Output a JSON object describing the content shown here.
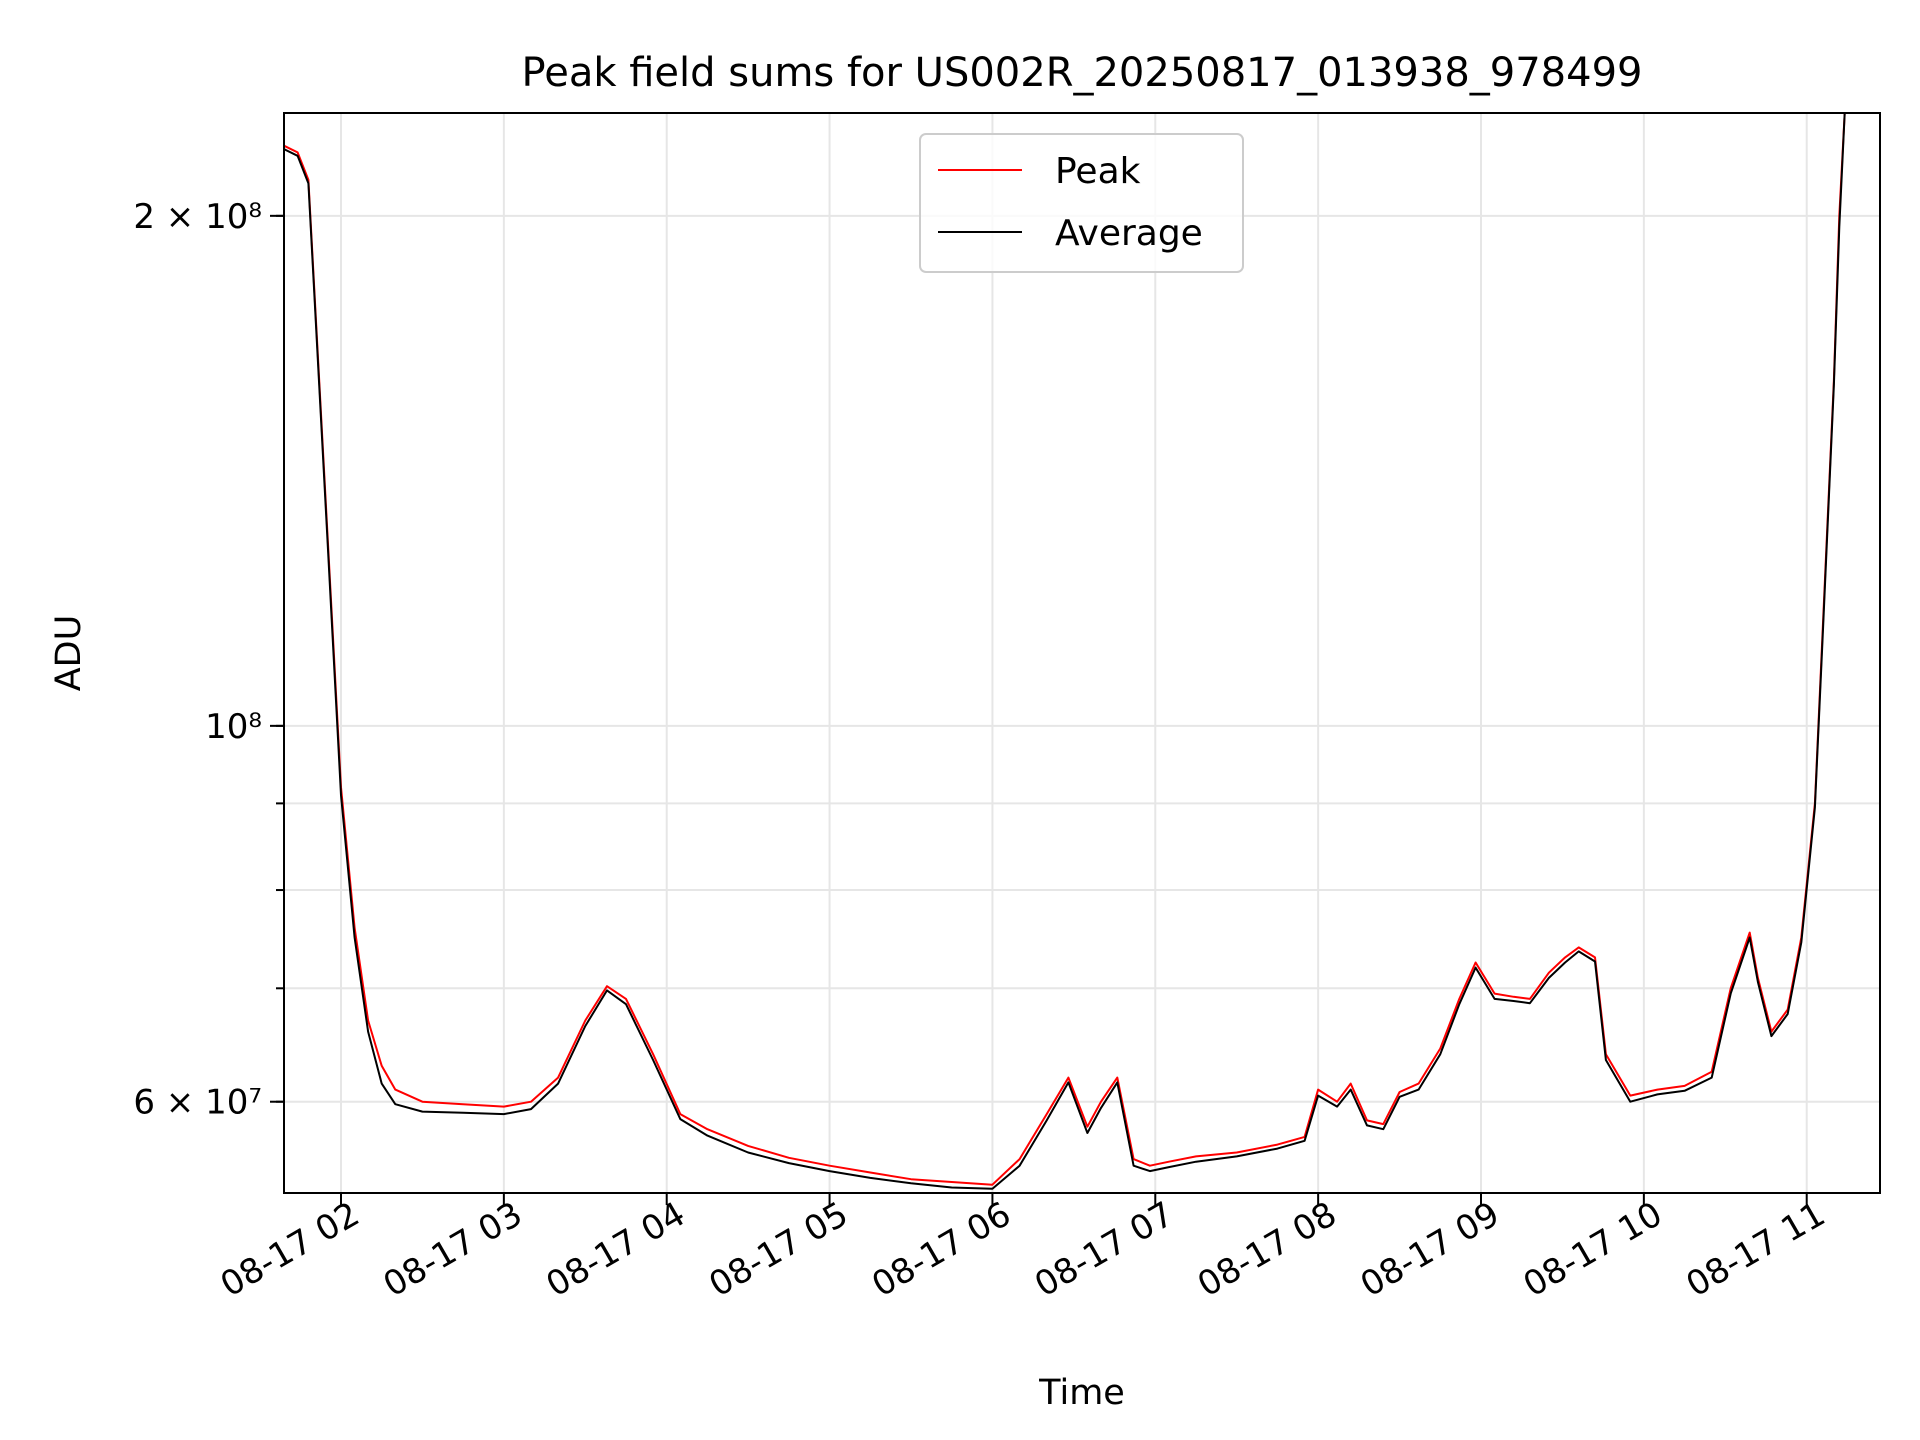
{
  "chart_data": {
    "type": "line",
    "title": "Peak field sums for US002R_20250817_013938_978499",
    "xlabel": "Time",
    "ylabel": "ADU",
    "yscale": "log",
    "grid": true,
    "legend_position": "top-center",
    "x_ticks": [
      "08-17 02",
      "08-17 03",
      "08-17 04",
      "08-17 05",
      "08-17 06",
      "08-17 07",
      "08-17 08",
      "08-17 09",
      "08-17 10",
      "08-17 11"
    ],
    "y_ticks": [
      {
        "value": 60000000,
        "label": "6 × 10⁷"
      },
      {
        "value": 100000000,
        "label": "10⁸"
      },
      {
        "value": 200000000,
        "label": "2 × 10⁸"
      }
    ],
    "xlim": [
      "2025-08-17 01:39",
      "2025-08-17 11:27"
    ],
    "ylim": [
      53000000,
      230000000
    ],
    "series": [
      {
        "name": "Peak",
        "color": "#ff0000",
        "x": [
          "2025-08-17 01:39",
          "2025-08-17 01:44",
          "2025-08-17 01:48",
          "2025-08-17 01:55",
          "2025-08-17 02:00",
          "2025-08-17 02:05",
          "2025-08-17 02:10",
          "2025-08-17 02:15",
          "2025-08-17 02:20",
          "2025-08-17 02:30",
          "2025-08-17 02:45",
          "2025-08-17 03:00",
          "2025-08-17 03:10",
          "2025-08-17 03:20",
          "2025-08-17 03:30",
          "2025-08-17 03:38",
          "2025-08-17 03:45",
          "2025-08-17 03:55",
          "2025-08-17 04:05",
          "2025-08-17 04:15",
          "2025-08-17 04:30",
          "2025-08-17 04:45",
          "2025-08-17 05:00",
          "2025-08-17 05:15",
          "2025-08-17 05:30",
          "2025-08-17 05:45",
          "2025-08-17 06:00",
          "2025-08-17 06:10",
          "2025-08-17 06:20",
          "2025-08-17 06:28",
          "2025-08-17 06:35",
          "2025-08-17 06:40",
          "2025-08-17 06:46",
          "2025-08-17 06:52",
          "2025-08-17 06:58",
          "2025-08-17 07:05",
          "2025-08-17 07:15",
          "2025-08-17 07:30",
          "2025-08-17 07:45",
          "2025-08-17 07:55",
          "2025-08-17 08:00",
          "2025-08-17 08:07",
          "2025-08-17 08:12",
          "2025-08-17 08:18",
          "2025-08-17 08:24",
          "2025-08-17 08:30",
          "2025-08-17 08:37",
          "2025-08-17 08:45",
          "2025-08-17 08:52",
          "2025-08-17 08:58",
          "2025-08-17 09:05",
          "2025-08-17 09:12",
          "2025-08-17 09:18",
          "2025-08-17 09:25",
          "2025-08-17 09:31",
          "2025-08-17 09:36",
          "2025-08-17 09:42",
          "2025-08-17 09:46",
          "2025-08-17 09:55",
          "2025-08-17 10:05",
          "2025-08-17 10:15",
          "2025-08-17 10:25",
          "2025-08-17 10:32",
          "2025-08-17 10:39",
          "2025-08-17 10:42",
          "2025-08-17 10:47",
          "2025-08-17 10:53",
          "2025-08-17 10:58",
          "2025-08-17 11:03",
          "2025-08-17 11:06",
          "2025-08-17 11:10",
          "2025-08-17 11:12",
          "2025-08-17 11:14"
        ],
        "values": [
          220000000,
          218000000,
          210000000,
          130000000,
          92000000,
          76000000,
          67000000,
          63000000,
          61000000,
          60000000,
          59800000,
          59600000,
          60000000,
          62000000,
          67000000,
          70200000,
          69000000,
          64000000,
          59000000,
          57800000,
          56500000,
          55600000,
          55000000,
          54500000,
          54000000,
          53800000,
          53600000,
          55500000,
          59000000,
          62000000,
          58000000,
          60000000,
          62000000,
          55500000,
          55000000,
          55300000,
          55700000,
          56000000,
          56600000,
          57200000,
          61000000,
          60000000,
          61500000,
          58500000,
          58200000,
          60800000,
          61500000,
          64500000,
          69000000,
          72500000,
          69500000,
          69200000,
          69000000,
          71500000,
          73000000,
          74000000,
          73000000,
          64000000,
          60500000,
          61000000,
          61300000,
          62500000,
          70000000,
          75500000,
          71000000,
          66000000,
          68000000,
          75000000,
          90000000,
          115000000,
          160000000,
          200000000,
          230000000
        ]
      },
      {
        "name": "Average",
        "color": "#000000",
        "x": [
          "2025-08-17 01:39",
          "2025-08-17 01:44",
          "2025-08-17 01:48",
          "2025-08-17 01:55",
          "2025-08-17 02:00",
          "2025-08-17 02:05",
          "2025-08-17 02:10",
          "2025-08-17 02:15",
          "2025-08-17 02:20",
          "2025-08-17 02:30",
          "2025-08-17 02:45",
          "2025-08-17 03:00",
          "2025-08-17 03:10",
          "2025-08-17 03:20",
          "2025-08-17 03:30",
          "2025-08-17 03:38",
          "2025-08-17 03:45",
          "2025-08-17 03:55",
          "2025-08-17 04:05",
          "2025-08-17 04:15",
          "2025-08-17 04:30",
          "2025-08-17 04:45",
          "2025-08-17 05:00",
          "2025-08-17 05:15",
          "2025-08-17 05:30",
          "2025-08-17 05:45",
          "2025-08-17 06:00",
          "2025-08-17 06:10",
          "2025-08-17 06:20",
          "2025-08-17 06:28",
          "2025-08-17 06:35",
          "2025-08-17 06:40",
          "2025-08-17 06:46",
          "2025-08-17 06:52",
          "2025-08-17 06:58",
          "2025-08-17 07:05",
          "2025-08-17 07:15",
          "2025-08-17 07:30",
          "2025-08-17 07:45",
          "2025-08-17 07:55",
          "2025-08-17 08:00",
          "2025-08-17 08:07",
          "2025-08-17 08:12",
          "2025-08-17 08:18",
          "2025-08-17 08:24",
          "2025-08-17 08:30",
          "2025-08-17 08:37",
          "2025-08-17 08:45",
          "2025-08-17 08:52",
          "2025-08-17 08:58",
          "2025-08-17 09:05",
          "2025-08-17 09:12",
          "2025-08-17 09:18",
          "2025-08-17 09:25",
          "2025-08-17 09:31",
          "2025-08-17 09:36",
          "2025-08-17 09:42",
          "2025-08-17 09:46",
          "2025-08-17 09:55",
          "2025-08-17 10:05",
          "2025-08-17 10:15",
          "2025-08-17 10:25",
          "2025-08-17 10:32",
          "2025-08-17 10:39",
          "2025-08-17 10:42",
          "2025-08-17 10:47",
          "2025-08-17 10:53",
          "2025-08-17 10:58",
          "2025-08-17 11:03",
          "2025-08-17 11:06",
          "2025-08-17 11:10",
          "2025-08-17 11:12",
          "2025-08-17 11:14"
        ],
        "values": [
          219000000,
          217000000,
          209000000,
          129000000,
          91000000,
          75000000,
          66000000,
          61500000,
          59800000,
          59200000,
          59100000,
          59000000,
          59400000,
          61500000,
          66500000,
          69800000,
          68500000,
          63500000,
          58600000,
          57300000,
          56000000,
          55200000,
          54600000,
          54100000,
          53700000,
          53400000,
          53300000,
          55000000,
          58500000,
          61600000,
          57500000,
          59500000,
          61600000,
          55000000,
          54600000,
          54900000,
          55300000,
          55700000,
          56300000,
          56900000,
          60500000,
          59600000,
          61000000,
          58100000,
          57800000,
          60400000,
          61000000,
          64000000,
          68500000,
          72000000,
          69000000,
          68800000,
          68600000,
          71000000,
          72500000,
          73600000,
          72600000,
          63500000,
          60000000,
          60600000,
          60900000,
          62000000,
          69500000,
          75000000,
          70600000,
          65600000,
          67600000,
          74500000,
          89500000,
          114000000,
          159000000,
          197000000,
          230000000
        ]
      }
    ]
  }
}
